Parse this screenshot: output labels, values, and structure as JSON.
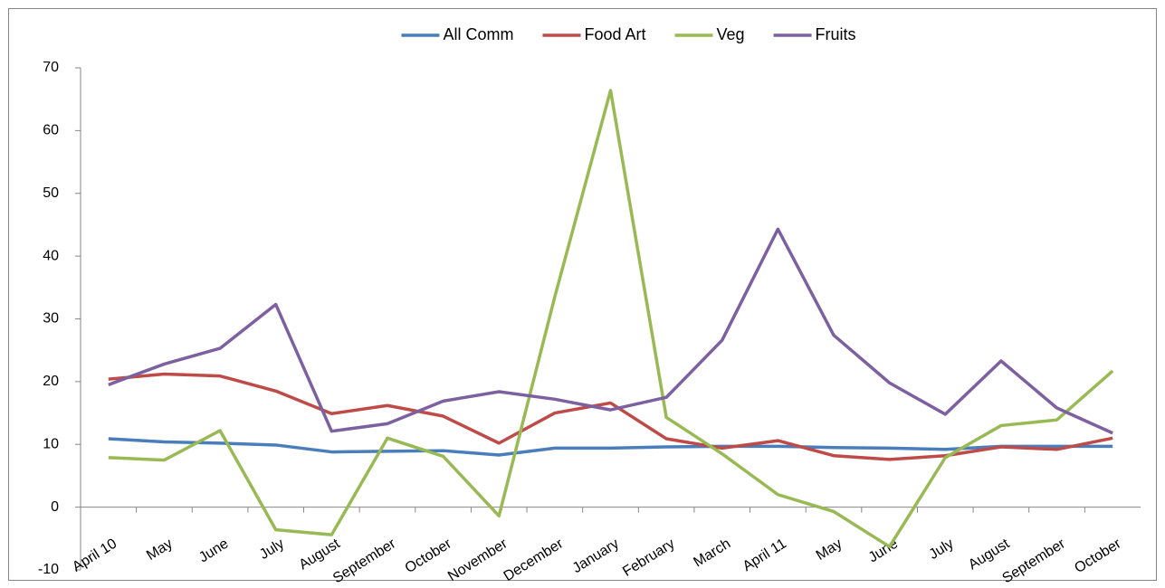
{
  "chart_data": {
    "type": "line",
    "categories": [
      "April 10",
      "May",
      "June",
      "July",
      "August",
      "September",
      "October",
      "November",
      "December",
      "January",
      "February",
      "March",
      "April  11",
      "May",
      "June",
      "July",
      "August",
      "September",
      "October"
    ],
    "series": [
      {
        "name": "All Comm",
        "color": "#4a7ebb",
        "values": [
          10.9,
          10.4,
          10.2,
          9.9,
          8.8,
          8.9,
          9.0,
          8.3,
          9.4,
          9.4,
          9.6,
          9.7,
          9.7,
          9.5,
          9.4,
          9.2,
          9.7,
          9.7,
          9.7
        ]
      },
      {
        "name": "Food Art",
        "color": "#be4b48",
        "values": [
          20.4,
          21.2,
          20.9,
          18.5,
          14.9,
          16.2,
          14.5,
          10.2,
          15.0,
          16.6,
          10.9,
          9.4,
          10.6,
          8.2,
          7.6,
          8.2,
          9.6,
          9.2,
          11.0
        ]
      },
      {
        "name": "Veg",
        "color": "#98b954",
        "values": [
          7.9,
          7.5,
          12.2,
          -3.6,
          -4.4,
          11.0,
          8.1,
          -1.4,
          33.5,
          66.4,
          14.3,
          8.5,
          2.0,
          -0.7,
          -6.3,
          7.9,
          13.0,
          13.9,
          21.7
        ]
      },
      {
        "name": "Fruits",
        "color": "#7d60a0",
        "values": [
          19.5,
          22.8,
          25.3,
          32.3,
          12.1,
          13.3,
          16.9,
          18.4,
          17.2,
          15.5,
          17.5,
          26.6,
          44.3,
          27.4,
          19.8,
          14.8,
          23.3,
          15.8,
          11.8
        ]
      }
    ],
    "ylim": [
      -10,
      70
    ],
    "yticks": [
      -10,
      0,
      10,
      20,
      30,
      40,
      50,
      60,
      70
    ],
    "legend": "top",
    "grid": false
  }
}
